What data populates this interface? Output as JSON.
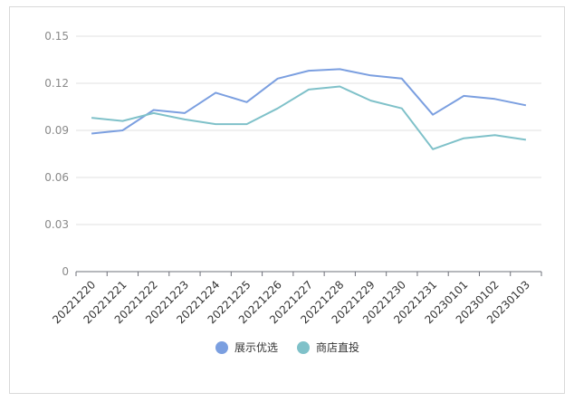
{
  "chart_data": {
    "type": "line",
    "categories": [
      "20221220",
      "20221221",
      "20221222",
      "20221223",
      "20221224",
      "20221225",
      "20221226",
      "20221227",
      "20221228",
      "20221229",
      "20221230",
      "20221231",
      "20230101",
      "20230102",
      "20230103"
    ],
    "ylim": [
      0,
      0.15
    ],
    "yticks": [
      "0",
      "0.03",
      "0.06",
      "0.09",
      "0.12",
      "0.15"
    ],
    "grid": true,
    "legend_position": "bottom",
    "series": [
      {
        "name": "展示优选",
        "color": "#7b9fe0",
        "values": [
          0.088,
          0.09,
          0.103,
          0.101,
          0.114,
          0.108,
          0.123,
          0.128,
          0.129,
          0.125,
          0.123,
          0.1,
          0.112,
          0.11,
          0.106
        ]
      },
      {
        "name": "商店直投",
        "color": "#7fc1c9",
        "values": [
          0.098,
          0.096,
          0.101,
          0.097,
          0.094,
          0.094,
          0.104,
          0.116,
          0.118,
          0.109,
          0.104,
          0.078,
          0.085,
          0.087,
          0.084
        ]
      }
    ]
  }
}
